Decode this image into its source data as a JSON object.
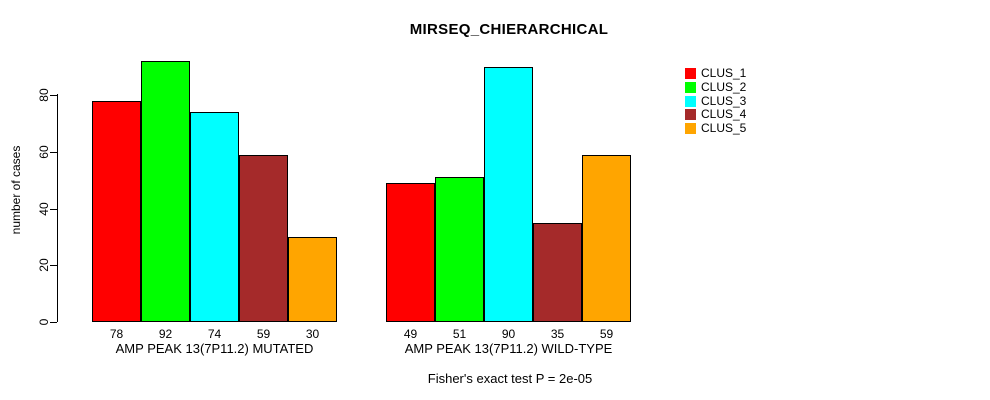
{
  "chart_data": {
    "type": "bar",
    "title": "MIRSEQ_CHIERARCHICAL",
    "ylabel": "number of cases",
    "xlabel": "",
    "yticks": [
      0,
      20,
      40,
      60,
      80
    ],
    "ylim": [
      0,
      92
    ],
    "grid": false,
    "legend_position": "right",
    "series": [
      "CLUS_1",
      "CLUS_2",
      "CLUS_3",
      "CLUS_4",
      "CLUS_5"
    ],
    "colors": [
      "#FF0000",
      "#00FF00",
      "#00FFFF",
      "#A52A2A",
      "#FFA500"
    ],
    "groups": [
      {
        "label": "AMP PEAK 13(7P11.2) MUTATED",
        "values": [
          78,
          92,
          74,
          59,
          30
        ]
      },
      {
        "label": "AMP PEAK 13(7P11.2) WILD-TYPE",
        "values": [
          49,
          51,
          90,
          35,
          59
        ]
      }
    ],
    "annotation": "Fisher's exact test P = 2e-05"
  }
}
